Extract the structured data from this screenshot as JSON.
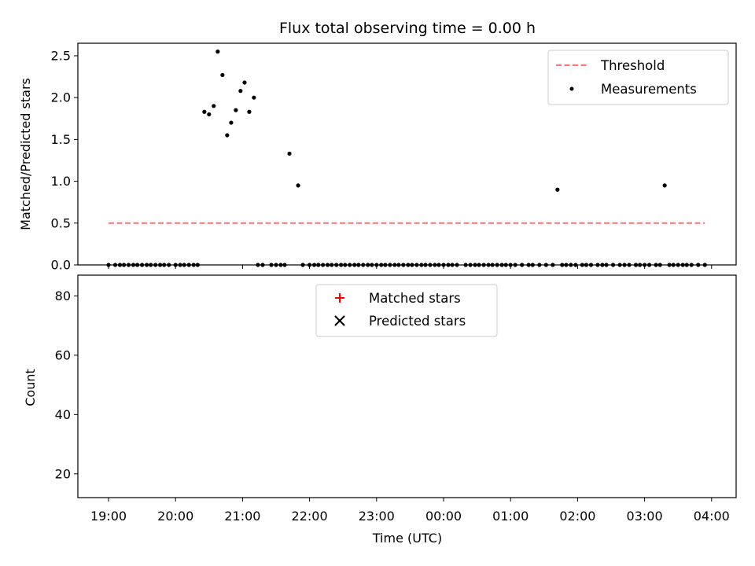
{
  "title": "Flux total observing time = 0.00 h",
  "colors": {
    "threshold": "#ff5a5a",
    "measurements": "#000000",
    "matched": "#ff0000",
    "predicted": "#000000"
  },
  "chart_data": [
    {
      "type": "scatter",
      "ylabel": "Matched/Predicted stars",
      "xlim": [
        -0.45,
        9.35
      ],
      "ylim": [
        0,
        2.65
      ],
      "y_ticks": [
        "0.0",
        "0.5",
        "1.0",
        "1.5",
        "2.0",
        "2.5"
      ],
      "legend_position": "upper right",
      "threshold": {
        "name": "Threshold",
        "x": [
          0,
          8.9
        ],
        "y": 0.5
      },
      "series": [
        {
          "name": "Measurements",
          "x": [
            0,
            0.1,
            0.17,
            0.23,
            0.3,
            0.37,
            0.43,
            0.5,
            0.57,
            0.63,
            0.7,
            0.77,
            0.83,
            0.9,
            1.0,
            1.07,
            1.13,
            1.2,
            1.27,
            1.33,
            1.43,
            1.5,
            1.57,
            1.63,
            1.7,
            1.77,
            1.83,
            1.9,
            1.97,
            2.03,
            2.1,
            2.17,
            2.23,
            2.3,
            2.43,
            2.5,
            2.57,
            2.63,
            2.7,
            2.83,
            2.9,
            3.0,
            3.07,
            3.13,
            3.2,
            3.27,
            3.33,
            3.4,
            3.47,
            3.53,
            3.6,
            3.67,
            3.73,
            3.8,
            3.87,
            3.93,
            4.0,
            4.07,
            4.13,
            4.2,
            4.27,
            4.33,
            4.4,
            4.47,
            4.53,
            4.6,
            4.67,
            4.73,
            4.8,
            4.87,
            4.93,
            5.0,
            5.07,
            5.13,
            5.2,
            5.33,
            5.4,
            5.47,
            5.53,
            5.6,
            5.67,
            5.73,
            5.8,
            5.87,
            5.93,
            6.0,
            6.07,
            6.17,
            6.27,
            6.33,
            6.43,
            6.53,
            6.63,
            6.7,
            6.77,
            6.83,
            6.9,
            6.97,
            7.07,
            7.13,
            7.2,
            7.3,
            7.37,
            7.43,
            7.53,
            7.63,
            7.7,
            7.77,
            7.87,
            7.93,
            8.0,
            8.07,
            8.17,
            8.23,
            8.3,
            8.37,
            8.43,
            8.5,
            8.57,
            8.63,
            8.7,
            8.8,
            8.9
          ],
          "y": [
            0,
            0,
            0,
            0,
            0,
            0,
            0,
            0,
            0,
            0,
            0,
            0,
            0,
            0,
            0,
            0,
            0,
            0,
            0,
            0,
            1.83,
            1.8,
            1.9,
            2.55,
            2.27,
            1.55,
            1.7,
            1.85,
            2.08,
            2.18,
            1.83,
            2.0,
            0,
            0,
            0,
            0,
            0,
            0,
            1.33,
            0.95,
            0,
            0,
            0,
            0,
            0,
            0,
            0,
            0,
            0,
            0,
            0,
            0,
            0,
            0,
            0,
            0,
            0,
            0,
            0,
            0,
            0,
            0,
            0,
            0,
            0,
            0,
            0,
            0,
            0,
            0,
            0,
            0,
            0,
            0,
            0,
            0,
            0,
            0,
            0,
            0,
            0,
            0,
            0,
            0,
            0,
            0,
            0,
            0,
            0,
            0,
            0,
            0,
            0,
            0.9,
            0,
            0,
            0,
            0,
            0,
            0,
            0,
            0,
            0,
            0,
            0,
            0,
            0,
            0,
            0,
            0,
            0,
            0,
            0,
            0,
            0.95,
            0,
            0,
            0,
            0,
            0,
            0,
            0,
            0
          ]
        }
      ]
    },
    {
      "type": "scatter",
      "xlabel": "Time (UTC)",
      "ylabel": "Count",
      "xlim": [
        -0.45,
        9.35
      ],
      "ylim": [
        12,
        87
      ],
      "x_ticks": [
        "19:00",
        "20:00",
        "21:00",
        "22:00",
        "23:00",
        "00:00",
        "01:00",
        "02:00",
        "03:00",
        "04:00"
      ],
      "y_ticks": [
        "20",
        "40",
        "60",
        "80"
      ],
      "legend_position": "upper center",
      "series": [
        {
          "name": "Matched stars",
          "x": [],
          "y": []
        },
        {
          "name": "Predicted stars",
          "x": [],
          "y": []
        }
      ]
    }
  ]
}
